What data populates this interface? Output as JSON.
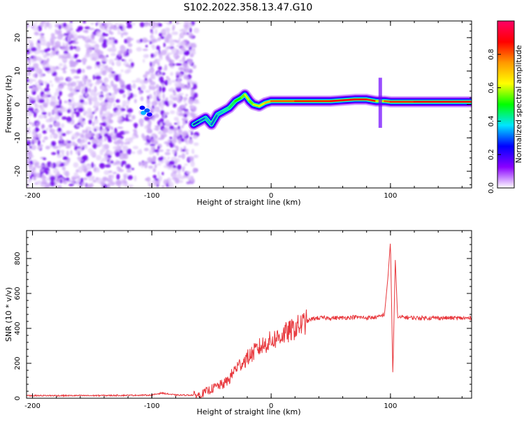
{
  "title": "S102.2022.358.13.47.G10",
  "chart_data": [
    {
      "type": "heatmap",
      "xlabel": "Height of straight line (km)",
      "ylabel": "Frequency (Hz)",
      "xlim": [
        -205,
        168
      ],
      "ylim": [
        -25,
        25
      ],
      "x_ticks": [
        -200,
        -100,
        0,
        100
      ],
      "x_tick_labels": [
        "-200",
        "-100",
        "0",
        "100"
      ],
      "y_ticks": [
        -20,
        -10,
        0,
        10,
        20
      ],
      "y_tick_labels": [
        "-20",
        "-10",
        "0",
        "10",
        "20"
      ],
      "colorbar": {
        "label": "Normalized spectral amplitude",
        "range": [
          0,
          1
        ],
        "ticks": [
          0.0,
          0.2,
          0.4,
          0.6,
          0.8
        ],
        "tick_labels": [
          "0.0",
          "0.2",
          "0.4",
          "0.6",
          "0.8"
        ],
        "colormap": [
          "#ffffff",
          "#8a00ff",
          "#0000ff",
          "#00e5ff",
          "#00ff00",
          "#ffff00",
          "#ff9900",
          "#ff0000",
          "#ff0066"
        ]
      },
      "noise_region": {
        "x": [
          -205,
          -62
        ],
        "intensity": 0.12
      },
      "ridge": {
        "x": [
          -65,
          -60,
          -55,
          -50,
          -45,
          -40,
          -35,
          -30,
          -25,
          -22,
          -18,
          -15,
          -10,
          -5,
          0,
          20,
          50,
          70,
          80,
          88,
          95,
          100,
          120,
          168
        ],
        "y": [
          -6,
          -5,
          -4,
          -6,
          -3,
          -2,
          -1,
          1,
          2,
          3,
          1,
          0,
          -0.5,
          0.5,
          1,
          1,
          1,
          1.5,
          1.5,
          1,
          1,
          0.8,
          0.8,
          0.8
        ],
        "amplitude": [
          0.25,
          0.3,
          0.35,
          0.3,
          0.35,
          0.4,
          0.45,
          0.5,
          0.55,
          0.6,
          0.55,
          0.6,
          0.65,
          0.7,
          0.8,
          0.85,
          0.9,
          0.9,
          0.85,
          0.6,
          0.8,
          0.85,
          0.9,
          0.9
        ]
      },
      "grid": false
    },
    {
      "type": "line",
      "xlabel": "Height of straight line (km)",
      "ylabel": "SNR (10 * v/v)",
      "xlim": [
        -205,
        168
      ],
      "ylim": [
        0,
        960
      ],
      "x_ticks": [
        -200,
        -100,
        0,
        100
      ],
      "x_tick_labels": [
        "-200",
        "-100",
        "0",
        "100"
      ],
      "y_ticks": [
        0,
        200,
        400,
        600,
        800
      ],
      "y_tick_labels": [
        "0",
        "200",
        "400",
        "600",
        "800"
      ],
      "line_color": "#e8383d",
      "series": [
        {
          "x": [
            -205,
            -150,
            -100,
            -92,
            -80,
            -60,
            -45,
            -40,
            -35,
            -30,
            -25,
            -20,
            -15,
            -10,
            -5,
            0,
            5,
            10,
            15,
            20,
            25,
            30,
            35,
            40,
            50,
            60,
            70,
            80,
            90,
            95,
            98,
            100,
            102,
            104,
            106,
            110,
            120,
            140,
            168
          ],
          "y": [
            15,
            15,
            18,
            30,
            18,
            18,
            70,
            80,
            110,
            170,
            200,
            230,
            260,
            290,
            310,
            330,
            345,
            365,
            380,
            400,
            420,
            440,
            455,
            460,
            460,
            460,
            465,
            460,
            465,
            480,
            700,
            900,
            130,
            800,
            460,
            465,
            460,
            460,
            458
          ]
        }
      ],
      "grid": false
    }
  ]
}
